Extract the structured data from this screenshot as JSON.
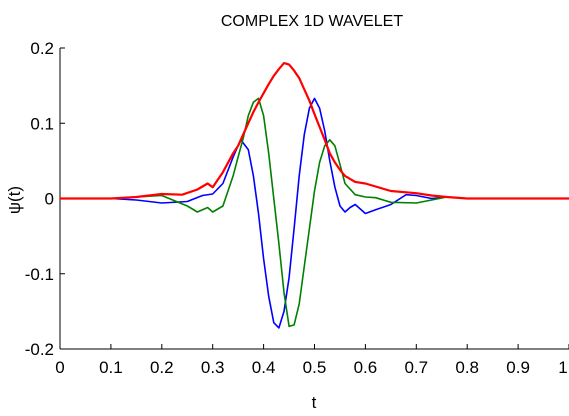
{
  "chart_data": {
    "type": "line",
    "title": "COMPLEX 1D WAVELET",
    "xlabel": "t",
    "ylabel": "ψ(t)",
    "xlim": [
      0,
      1
    ],
    "ylim": [
      -0.2,
      0.2
    ],
    "xticks": [
      0,
      0.1,
      0.2,
      0.3,
      0.4,
      0.5,
      0.6,
      0.7,
      0.8,
      0.9,
      1
    ],
    "xtick_labels": [
      "0",
      "0.1",
      "0.2",
      "0.3",
      "0.4",
      "0.5",
      "0.6",
      "0.7",
      "0.8",
      "0.9",
      "1"
    ],
    "yticks": [
      0.2,
      0.1,
      0,
      -0.1,
      -0.2
    ],
    "ytick_labels": [
      "0.2",
      "0.1",
      "0",
      "-0.1",
      "-0.2"
    ],
    "grid": false,
    "legend": false,
    "series": [
      {
        "color": "#0000ff",
        "x": [
          0,
          0.1,
          0.15,
          0.2,
          0.25,
          0.28,
          0.3,
          0.32,
          0.34,
          0.355,
          0.37,
          0.38,
          0.39,
          0.4,
          0.41,
          0.42,
          0.43,
          0.44,
          0.45,
          0.46,
          0.47,
          0.48,
          0.49,
          0.5,
          0.51,
          0.52,
          0.53,
          0.54,
          0.55,
          0.56,
          0.57,
          0.58,
          0.6,
          0.62,
          0.65,
          0.68,
          0.7,
          0.73,
          0.76,
          0.8,
          1
        ],
        "y": [
          0,
          0,
          -0.002,
          -0.006,
          -0.004,
          0.004,
          0.006,
          0.02,
          0.055,
          0.078,
          0.065,
          0.03,
          -0.02,
          -0.08,
          -0.13,
          -0.165,
          -0.172,
          -0.15,
          -0.105,
          -0.04,
          0.03,
          0.085,
          0.12,
          0.133,
          0.12,
          0.09,
          0.05,
          0.015,
          -0.01,
          -0.018,
          -0.012,
          -0.008,
          -0.02,
          -0.015,
          -0.008,
          0.005,
          0.004,
          0.0,
          0.002,
          0,
          0
        ]
      },
      {
        "color": "#008000",
        "x": [
          0,
          0.1,
          0.15,
          0.2,
          0.25,
          0.27,
          0.29,
          0.3,
          0.32,
          0.33,
          0.34,
          0.35,
          0.36,
          0.37,
          0.38,
          0.39,
          0.4,
          0.41,
          0.42,
          0.43,
          0.44,
          0.45,
          0.46,
          0.47,
          0.48,
          0.49,
          0.5,
          0.51,
          0.52,
          0.53,
          0.54,
          0.55,
          0.56,
          0.58,
          0.6,
          0.62,
          0.65,
          0.7,
          0.73,
          0.76,
          0.8,
          1
        ],
        "y": [
          0,
          0,
          0.002,
          0.004,
          -0.01,
          -0.018,
          -0.012,
          -0.018,
          -0.01,
          0.01,
          0.03,
          0.055,
          0.08,
          0.11,
          0.128,
          0.133,
          0.11,
          0.06,
          0.0,
          -0.06,
          -0.125,
          -0.17,
          -0.168,
          -0.14,
          -0.09,
          -0.04,
          0.01,
          0.048,
          0.07,
          0.078,
          0.07,
          0.045,
          0.02,
          0.005,
          0.002,
          0.001,
          -0.005,
          -0.006,
          -0.002,
          0.002,
          0,
          0
        ]
      },
      {
        "color": "#ff0000",
        "x": [
          0,
          0.1,
          0.15,
          0.2,
          0.24,
          0.27,
          0.29,
          0.3,
          0.32,
          0.34,
          0.35,
          0.36,
          0.37,
          0.38,
          0.39,
          0.4,
          0.41,
          0.42,
          0.43,
          0.44,
          0.45,
          0.46,
          0.47,
          0.48,
          0.49,
          0.5,
          0.51,
          0.52,
          0.53,
          0.54,
          0.55,
          0.56,
          0.58,
          0.6,
          0.62,
          0.65,
          0.7,
          0.73,
          0.76,
          0.8,
          1
        ],
        "y": [
          0,
          0,
          0.002,
          0.006,
          0.005,
          0.012,
          0.02,
          0.015,
          0.035,
          0.06,
          0.07,
          0.085,
          0.1,
          0.115,
          0.128,
          0.14,
          0.152,
          0.163,
          0.172,
          0.18,
          0.178,
          0.17,
          0.16,
          0.145,
          0.13,
          0.112,
          0.095,
          0.078,
          0.06,
          0.048,
          0.038,
          0.03,
          0.022,
          0.02,
          0.016,
          0.01,
          0.007,
          0.004,
          0.002,
          0,
          0
        ]
      }
    ]
  }
}
